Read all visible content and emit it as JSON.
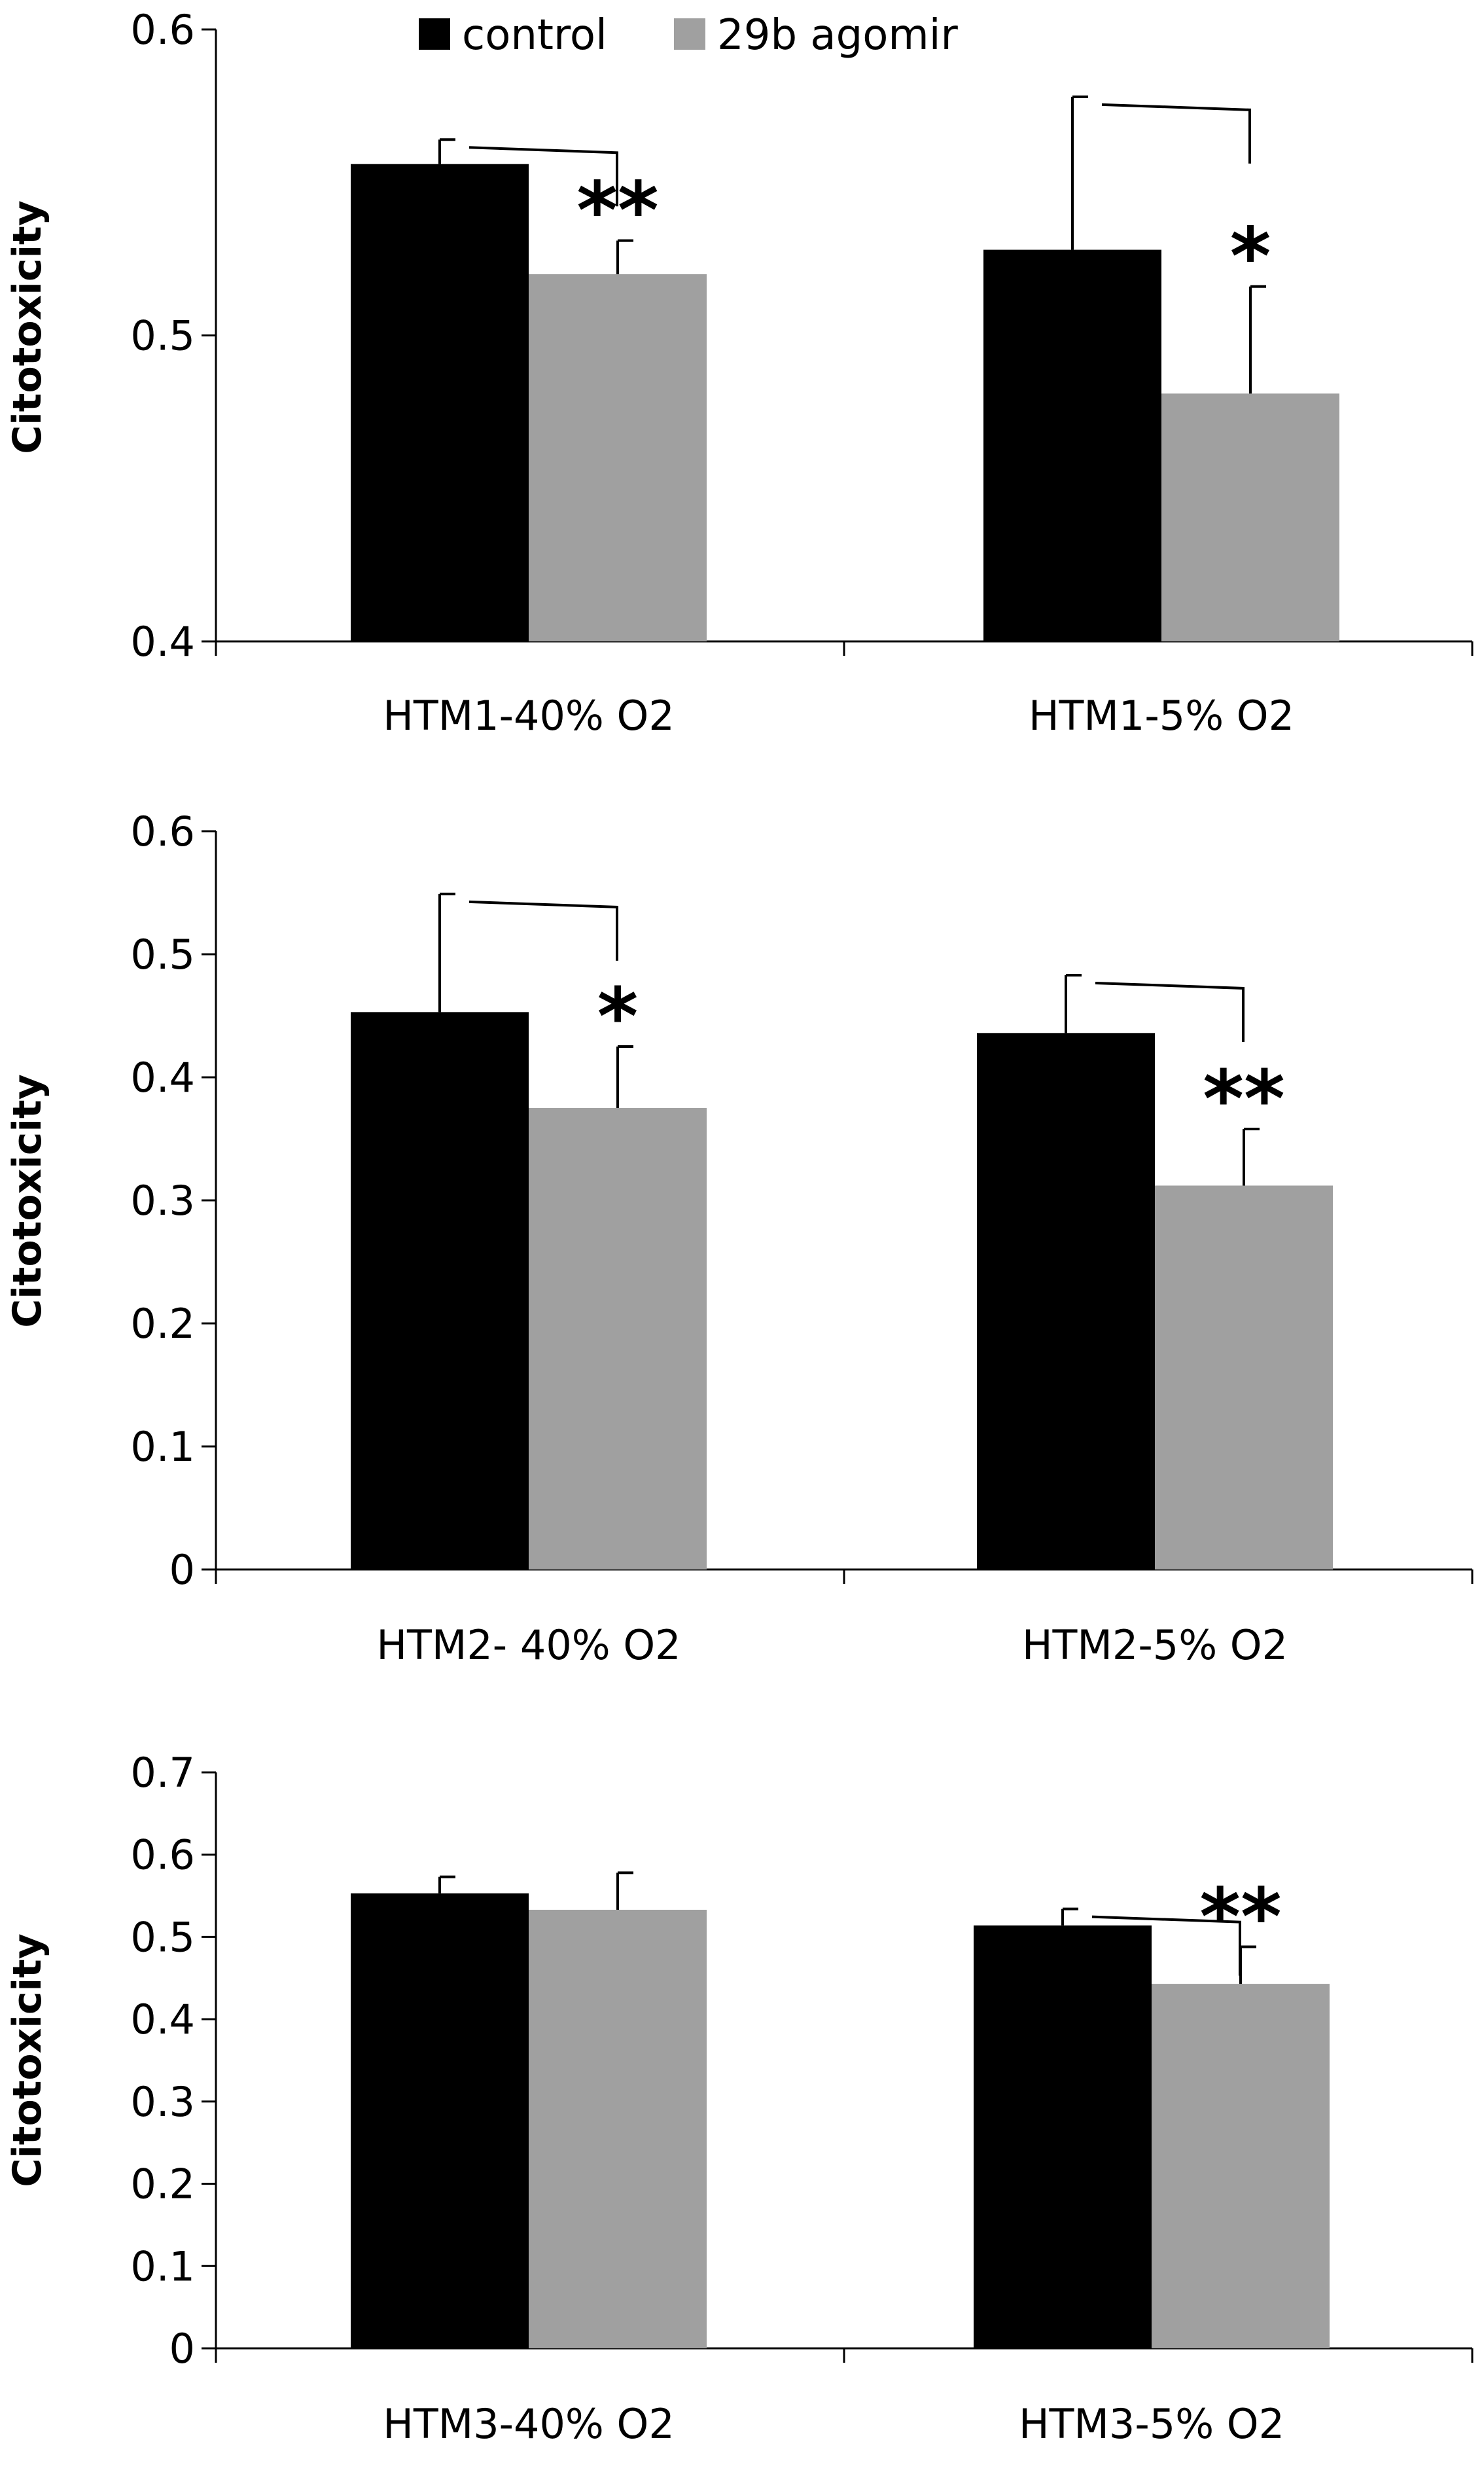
{
  "legend": {
    "position": "top",
    "items": [
      {
        "label": "control",
        "color": "#000000"
      },
      {
        "label": "29b agomir",
        "color": "#a0a0a0"
      }
    ]
  },
  "chart_data": [
    {
      "type": "bar",
      "ylabel": "Citotoxicity",
      "ylim": [
        0.4,
        0.6
      ],
      "yticks": [
        0.4,
        0.5,
        0.6
      ],
      "ytick_labels": [
        "0.4",
        "0.5",
        "0.6"
      ],
      "categories": [
        "HTM1-40% O2",
        "HTM1-5% O2"
      ],
      "series": [
        {
          "name": "control",
          "color": "#000000",
          "values": [
            0.556,
            0.528
          ],
          "errors": [
            0.008,
            0.05
          ]
        },
        {
          "name": "29b agomir",
          "color": "#a0a0a0",
          "values": [
            0.52,
            0.481
          ],
          "errors": [
            0.011,
            0.035
          ]
        }
      ],
      "significance": [
        "**",
        "*"
      ]
    },
    {
      "type": "bar",
      "ylabel": "Citotoxicity",
      "ylim": [
        0,
        0.6
      ],
      "yticks": [
        0,
        0.1,
        0.2,
        0.3,
        0.4,
        0.5,
        0.6
      ],
      "ytick_labels": [
        "0",
        "0.1",
        "0.2",
        "0.3",
        "0.4",
        "0.5",
        "0.6"
      ],
      "categories": [
        "HTM2- 40% O2",
        "HTM2-5% O2"
      ],
      "series": [
        {
          "name": "control",
          "color": "#000000",
          "values": [
            0.453,
            0.436
          ],
          "errors": [
            0.096,
            0.047
          ]
        },
        {
          "name": "29b agomir",
          "color": "#a0a0a0",
          "values": [
            0.375,
            0.312
          ],
          "errors": [
            0.05,
            0.046
          ]
        }
      ],
      "significance": [
        "*",
        "**"
      ]
    },
    {
      "type": "bar",
      "ylabel": "Citotoxicity",
      "ylim": [
        0,
        0.7
      ],
      "yticks": [
        0,
        0.1,
        0.2,
        0.3,
        0.4,
        0.5,
        0.6,
        0.7
      ],
      "ytick_labels": [
        "0",
        "0.1",
        "0.2",
        "0.3",
        "0.4",
        "0.5",
        "0.6",
        "0.7"
      ],
      "categories": [
        "HTM3-40% O2",
        "HTM3-5% O2"
      ],
      "series": [
        {
          "name": "control",
          "color": "#000000",
          "values": [
            0.553,
            0.514
          ],
          "errors": [
            0.02,
            0.02
          ]
        },
        {
          "name": "29b agomir",
          "color": "#a0a0a0",
          "values": [
            0.533,
            0.443
          ],
          "errors": [
            0.045,
            0.045
          ]
        }
      ],
      "significance": [
        "",
        "**"
      ]
    }
  ]
}
